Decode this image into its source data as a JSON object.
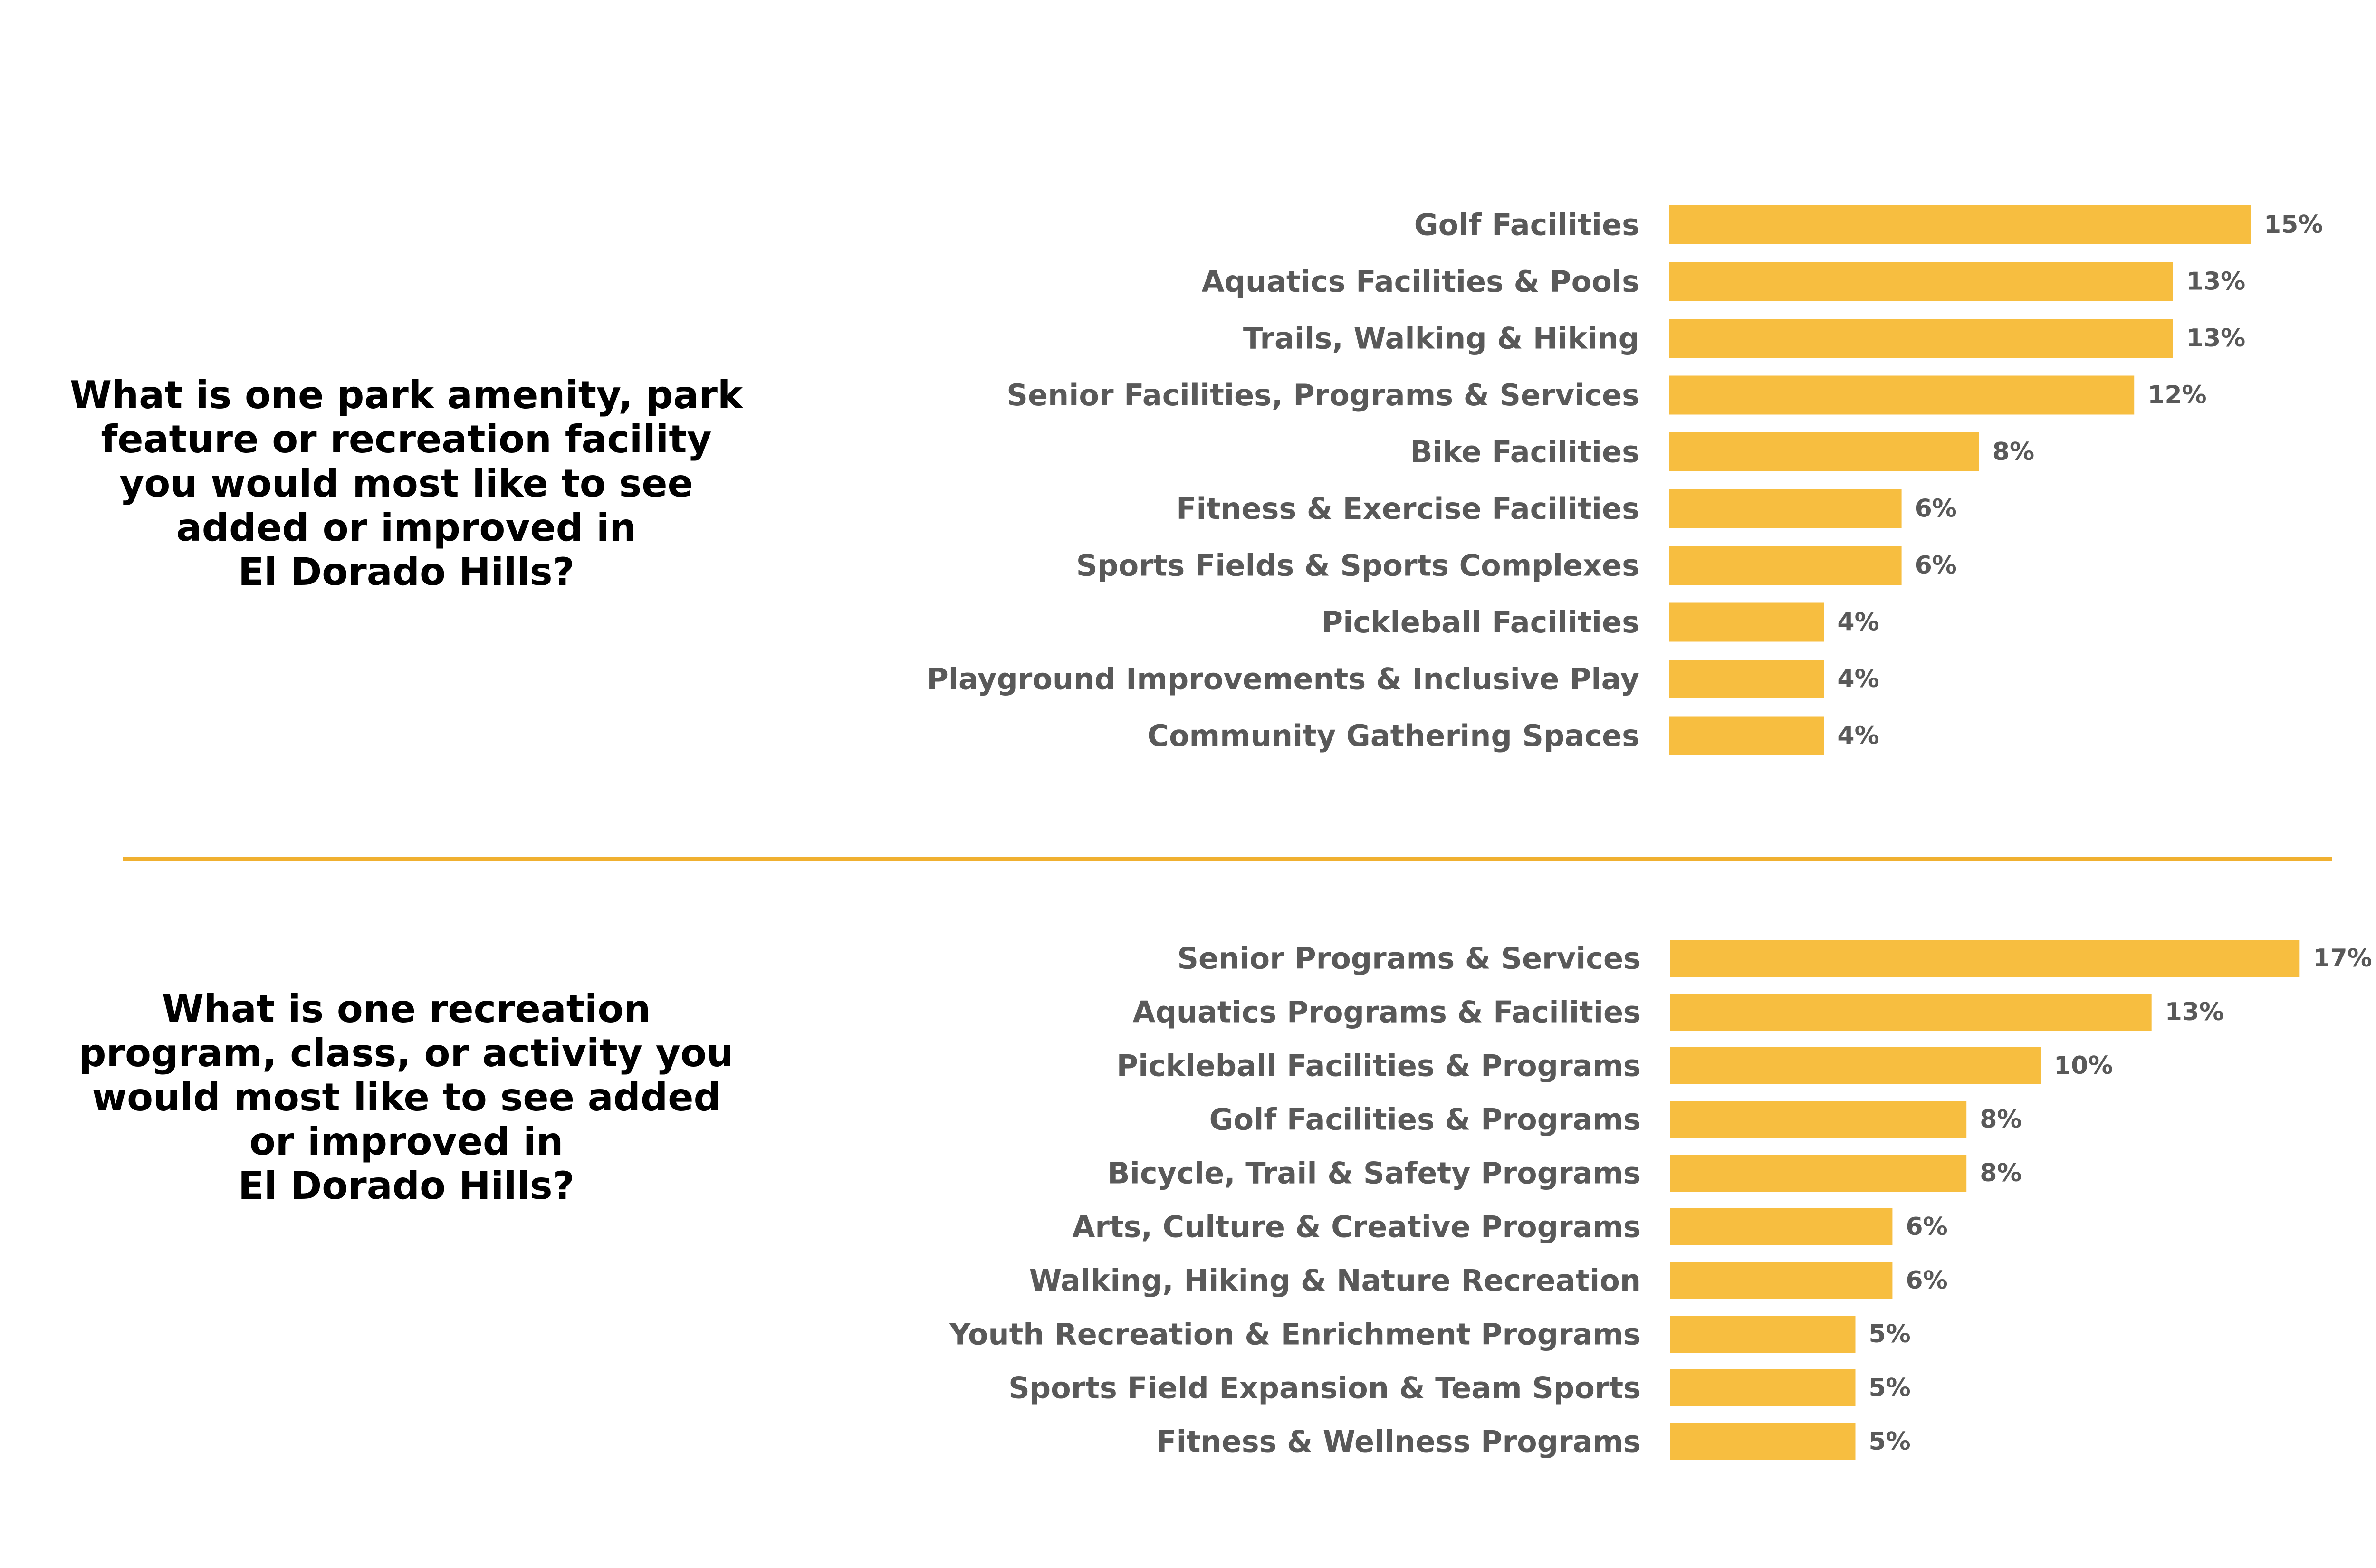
{
  "colors": {
    "bar": "#F7BE40",
    "divider": "#F0B030",
    "label": "#595959",
    "question": "#000000"
  },
  "questions": {
    "q1": "What is one park amenity, park\nfeature or recreation facility\nyou would most like to see\nadded or improved in\nEl Dorado Hills?",
    "q2": "What is one recreation\nprogram, class, or activity you\nwould most like to see added\nor improved in\nEl Dorado Hills?"
  },
  "chart_data": [
    {
      "type": "bar",
      "orientation": "horizontal",
      "categories": [
        "Golf Facilities",
        "Aquatics Facilities & Pools",
        "Trails, Walking & Hiking",
        "Senior Facilities, Programs & Services",
        "Bike Facilities",
        "Fitness & Exercise Facilities",
        "Sports Fields & Sports Complexes",
        "Pickleball Facilities",
        "Playground Improvements & Inclusive Play",
        "Community Gathering Spaces"
      ],
      "values": [
        15,
        13,
        13,
        12,
        8,
        6,
        6,
        4,
        4,
        4
      ],
      "value_labels": [
        "15%",
        "13%",
        "13%",
        "12%",
        "8%",
        "6%",
        "6%",
        "4%",
        "4%",
        "4%"
      ],
      "grid": false
    },
    {
      "type": "bar",
      "orientation": "horizontal",
      "categories": [
        "Senior Programs & Services",
        "Aquatics Programs & Facilities",
        "Pickleball Facilities & Programs",
        "Golf Facilities & Programs",
        "Bicycle, Trail & Safety Programs",
        "Arts, Culture & Creative Programs",
        "Walking, Hiking & Nature Recreation",
        "Youth Recreation & Enrichment Programs",
        "Sports Field Expansion & Team Sports",
        "Fitness & Wellness Programs"
      ],
      "values": [
        17,
        13,
        10,
        8,
        8,
        6,
        6,
        5,
        5,
        5
      ],
      "value_labels": [
        "17%",
        "13%",
        "10%",
        "8%",
        "8%",
        "6%",
        "6%",
        "5%",
        "5%",
        "5%"
      ],
      "grid": false
    }
  ]
}
